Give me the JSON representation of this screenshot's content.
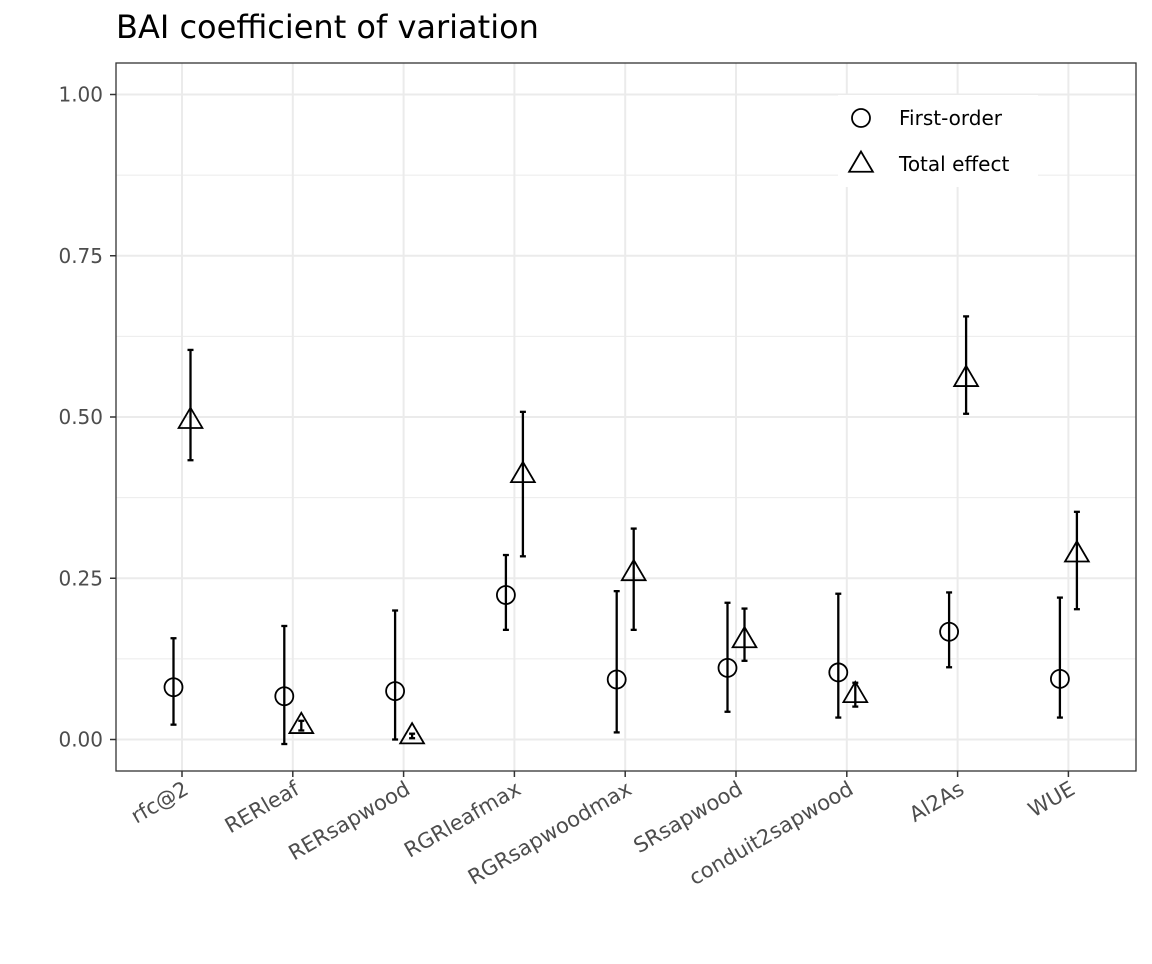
{
  "chart_data": {
    "type": "scatter",
    "title": "BAI coefficient of variation",
    "xlabel": "",
    "ylabel": "",
    "categories": [
      "rfc@2",
      "RERleaf",
      "RERsapwood",
      "RGRleafmax",
      "RGRsapwoodmax",
      "SRsapwood",
      "conduit2sapwood",
      "Al2As",
      "WUE"
    ],
    "ylim": [
      -0.05,
      1.05
    ],
    "yticks": [
      "0.00",
      "0.25",
      "0.50",
      "0.75",
      "1.00"
    ],
    "grid": true,
    "legend_position": "top-right",
    "series": [
      {
        "name": "First-order",
        "marker": "circle",
        "values": [
          0.081,
          0.067,
          0.075,
          0.224,
          0.093,
          0.111,
          0.104,
          0.167,
          0.094
        ],
        "lower": [
          0.023,
          -0.007,
          0.0,
          0.17,
          0.011,
          0.043,
          0.034,
          0.112,
          0.034
        ],
        "upper": [
          0.157,
          0.176,
          0.2,
          0.286,
          0.23,
          0.212,
          0.226,
          0.228,
          0.22
        ]
      },
      {
        "name": "Total effect",
        "marker": "triangle",
        "values": [
          0.495,
          0.022,
          0.006,
          0.411,
          0.259,
          0.155,
          0.07,
          0.56,
          0.288
        ],
        "lower": [
          0.433,
          0.014,
          0.002,
          0.284,
          0.17,
          0.122,
          0.051,
          0.505,
          0.202
        ],
        "upper": [
          0.604,
          0.029,
          0.009,
          0.508,
          0.327,
          0.203,
          0.088,
          0.656,
          0.353
        ]
      }
    ],
    "colors": {
      "marker": "#000000",
      "grid": "#ebebeb",
      "panel_border": "#333333",
      "tick_label": "#4d4d4d"
    }
  }
}
